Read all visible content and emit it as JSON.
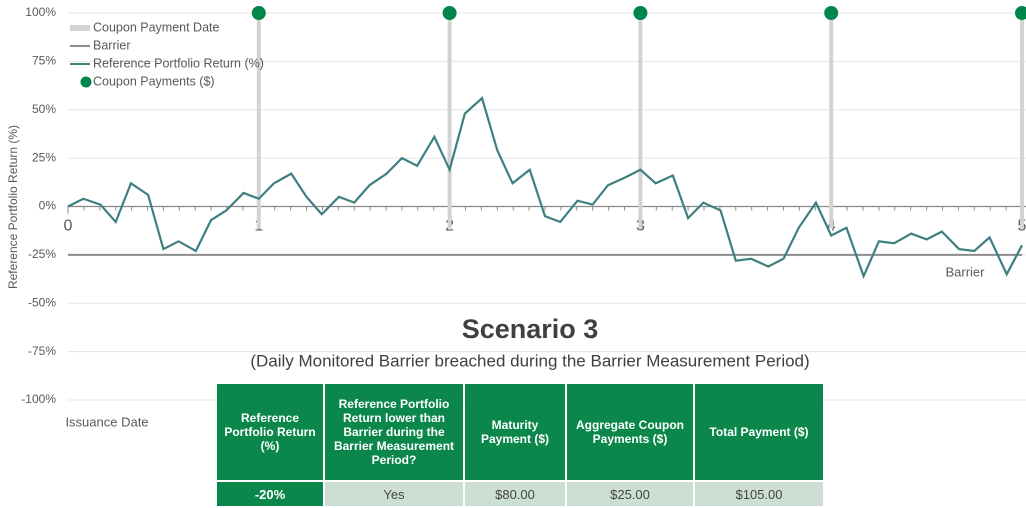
{
  "chart_data": {
    "type": "line",
    "title": "Scenario 3",
    "subtitle": "(Daily Monitored Barrier breached during the Barrier Measurement Period)",
    "y_label": "Reference Portfolio Return (%)",
    "barrier_label": "Barrier",
    "issuance_label": "Issuance Date",
    "xlim": [
      0,
      5
    ],
    "xticks": [
      0,
      1,
      2,
      3,
      4,
      5
    ],
    "ylim": [
      -100,
      100
    ],
    "yticks": [
      {
        "value": -100,
        "label": "-100%"
      },
      {
        "value": -75,
        "label": "-75%"
      },
      {
        "value": -50,
        "label": "-50%"
      },
      {
        "value": -25,
        "label": "-25%"
      },
      {
        "value": 0,
        "label": "0%"
      },
      {
        "value": 25,
        "label": "25%"
      },
      {
        "value": 50,
        "label": "50%"
      },
      {
        "value": 75,
        "label": "75%"
      },
      {
        "value": 100,
        "label": "100%"
      }
    ],
    "grid": true,
    "legend": "top-left",
    "series": [
      {
        "name": "Coupon Payment Date",
        "kind": "vline",
        "color": "#d3d3d3",
        "x": [
          1,
          2,
          3,
          4,
          5
        ]
      },
      {
        "name": "Barrier",
        "kind": "line",
        "color": "#8c8c8c",
        "x": [
          0,
          5
        ],
        "values": [
          -25,
          -25
        ]
      },
      {
        "name": "Reference Portfolio Return (%)",
        "kind": "line",
        "color": "#3e7f80",
        "x": [
          0,
          0.08,
          0.17,
          0.25,
          0.33,
          0.42,
          0.5,
          0.58,
          0.67,
          0.75,
          0.83,
          0.92,
          1,
          1.08,
          1.17,
          1.25,
          1.33,
          1.42,
          1.5,
          1.58,
          1.67,
          1.75,
          1.83,
          1.92,
          2,
          2.08,
          2.17,
          2.25,
          2.33,
          2.42,
          2.5,
          2.58,
          2.67,
          2.75,
          2.83,
          2.92,
          3,
          3.08,
          3.17,
          3.25,
          3.33,
          3.42,
          3.5,
          3.58,
          3.67,
          3.75,
          3.83,
          3.92,
          4,
          4.08,
          4.17,
          4.25,
          4.33,
          4.42,
          4.5,
          4.58,
          4.67,
          4.75,
          4.83,
          4.92,
          5
        ],
        "values": [
          0,
          4,
          1,
          -8,
          12,
          6,
          -22,
          -18,
          -23,
          -7,
          -2,
          7,
          4,
          12,
          17,
          5,
          -4,
          5,
          2,
          11,
          17,
          25,
          21,
          36,
          19,
          48,
          56,
          29,
          12,
          19,
          -5,
          -8,
          3,
          1,
          11,
          15,
          19,
          12,
          16,
          -6,
          2,
          -2,
          -28,
          -27,
          -31,
          -27,
          -11,
          2,
          -15,
          -11,
          -36,
          -18,
          -19,
          -14,
          -17,
          -13,
          -22,
          -23,
          -16,
          -35,
          -20
        ]
      },
      {
        "name": "Coupon Payments ($)",
        "kind": "dot",
        "color": "#00864a",
        "x": [
          1,
          2,
          3,
          4,
          5
        ],
        "values": [
          100,
          100,
          100,
          100,
          100
        ]
      }
    ]
  },
  "table": {
    "header": [
      "Reference Portfolio Return (%)",
      "Reference Portfolio Return lower than Barrier during the Barrier Measurement Period?",
      "Maturity Payment ($)",
      "Aggregate Coupon Payments ($)",
      "Total Payment ($)"
    ],
    "rows": [
      [
        "-20%",
        "Yes",
        "$80.00",
        "$25.00",
        "$105.00"
      ]
    ]
  }
}
